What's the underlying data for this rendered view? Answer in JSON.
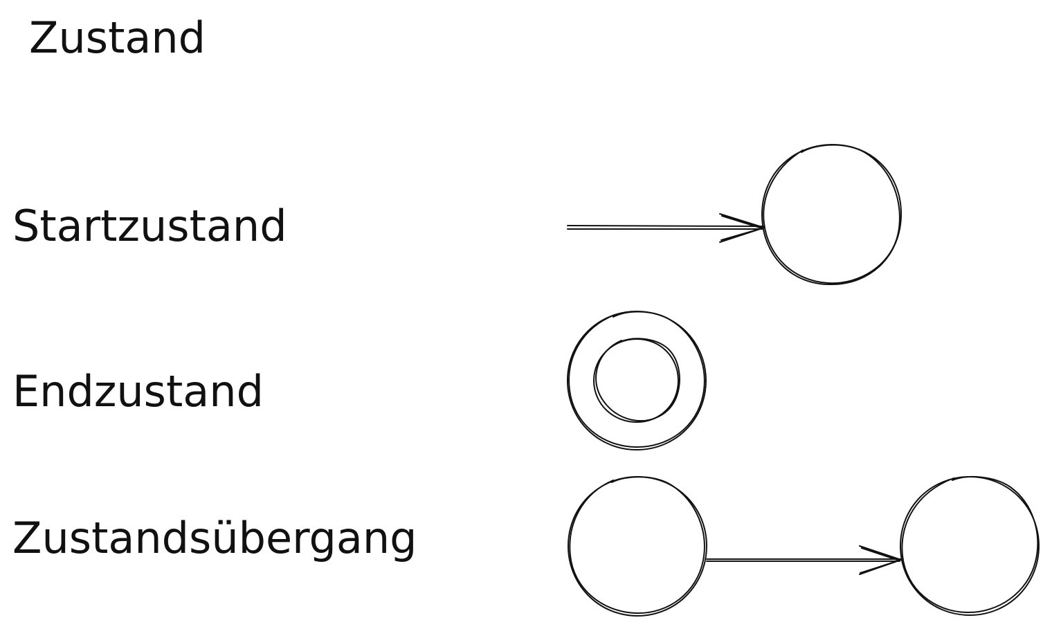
{
  "labels": {
    "state": "Zustand",
    "start_state": "Startzustand",
    "end_state": "Endzustand",
    "transition": "Zustandsübergang"
  },
  "colors": {
    "ink": "#111111",
    "background": "#ffffff"
  }
}
